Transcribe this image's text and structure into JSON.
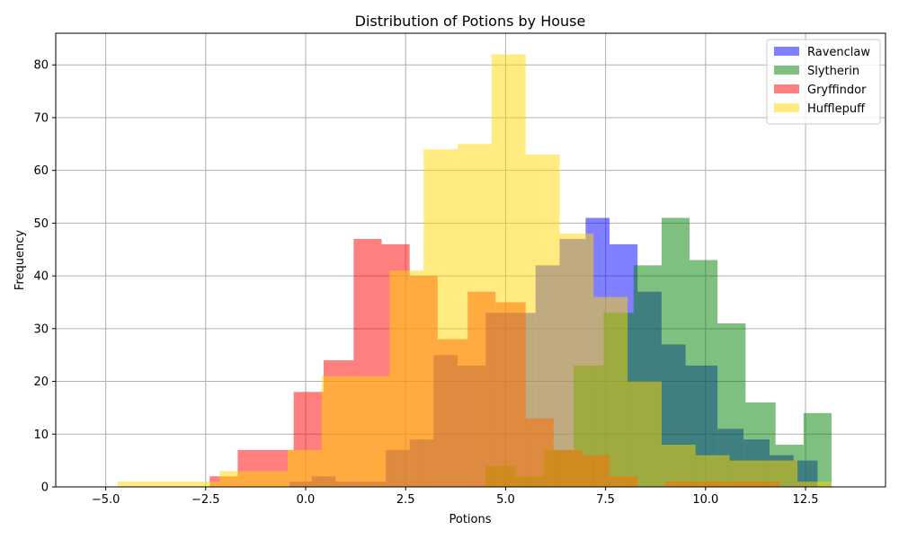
{
  "chart_data": {
    "type": "bar",
    "subtype": "overlapping-histogram",
    "title": "Distribution of Potions by House",
    "xlabel": "Potions",
    "ylabel": "Frequency",
    "xlim": [
      -6.25,
      14.5
    ],
    "ylim": [
      0,
      86
    ],
    "xticks": [
      -5.0,
      -2.5,
      0.0,
      2.5,
      5.0,
      7.5,
      10.0,
      12.5
    ],
    "xtick_labels": [
      "−5.0",
      "−2.5",
      "0.0",
      "2.5",
      "5.0",
      "7.5",
      "10.0",
      "12.5"
    ],
    "yticks": [
      0,
      10,
      20,
      30,
      40,
      50,
      60,
      70,
      80
    ],
    "ytick_labels": [
      "0",
      "10",
      "20",
      "30",
      "40",
      "50",
      "60",
      "70",
      "80"
    ],
    "grid": true,
    "legend_position": "top-right",
    "bar_opacity": 0.5,
    "series": [
      {
        "name": "Ravenclaw",
        "color": "#0000ff",
        "bins": [
          [
            -0.4,
            0.15,
            1
          ],
          [
            0.15,
            0.75,
            2
          ],
          [
            0.75,
            1.35,
            1
          ],
          [
            1.35,
            2.0,
            1
          ],
          [
            2.0,
            2.6,
            7
          ],
          [
            2.6,
            3.2,
            9
          ],
          [
            3.2,
            3.8,
            25
          ],
          [
            3.8,
            4.5,
            23
          ],
          [
            4.5,
            5.1,
            33
          ],
          [
            5.1,
            5.75,
            33
          ],
          [
            5.75,
            6.35,
            42
          ],
          [
            6.35,
            7.0,
            47
          ],
          [
            7.0,
            7.6,
            51
          ],
          [
            7.6,
            8.3,
            46
          ],
          [
            8.3,
            8.9,
            37
          ],
          [
            8.9,
            9.5,
            27
          ],
          [
            9.5,
            10.3,
            23
          ],
          [
            10.3,
            10.95,
            11
          ],
          [
            10.95,
            11.6,
            9
          ],
          [
            11.6,
            12.2,
            6
          ],
          [
            12.2,
            12.8,
            5
          ]
        ]
      },
      {
        "name": "Slytherin",
        "color": "#008000",
        "bins": [
          [
            4.5,
            5.25,
            4
          ],
          [
            5.25,
            5.95,
            2
          ],
          [
            5.95,
            6.7,
            7
          ],
          [
            6.7,
            7.45,
            23
          ],
          [
            7.45,
            8.2,
            33
          ],
          [
            8.2,
            8.9,
            42
          ],
          [
            8.9,
            9.6,
            51
          ],
          [
            9.6,
            10.3,
            43
          ],
          [
            10.3,
            11.0,
            31
          ],
          [
            11.0,
            11.75,
            16
          ],
          [
            11.75,
            12.45,
            8
          ],
          [
            12.45,
            13.15,
            14
          ]
        ]
      },
      {
        "name": "Gryffindor",
        "color": "#ff0000",
        "bins": [
          [
            -2.4,
            -1.7,
            2
          ],
          [
            -1.7,
            -1.0,
            7
          ],
          [
            -1.0,
            -0.3,
            7
          ],
          [
            -0.3,
            0.45,
            18
          ],
          [
            0.45,
            1.2,
            24
          ],
          [
            1.2,
            1.9,
            47
          ],
          [
            1.9,
            2.6,
            46
          ],
          [
            2.6,
            3.3,
            40
          ],
          [
            3.3,
            4.05,
            28
          ],
          [
            4.05,
            4.75,
            37
          ],
          [
            4.75,
            5.5,
            35
          ],
          [
            5.5,
            6.2,
            13
          ],
          [
            6.2,
            6.9,
            7
          ],
          [
            6.9,
            7.6,
            6
          ],
          [
            7.6,
            8.3,
            2
          ],
          [
            8.3,
            9.0,
            0
          ],
          [
            9.0,
            9.75,
            1
          ],
          [
            9.75,
            10.45,
            1
          ],
          [
            10.45,
            11.15,
            1
          ],
          [
            11.15,
            11.85,
            1
          ]
        ]
      },
      {
        "name": "Hufflepuff",
        "color": "#ffd700",
        "bins": [
          [
            -4.7,
            -3.85,
            1
          ],
          [
            -3.85,
            -3.0,
            1
          ],
          [
            -3.0,
            -2.15,
            1
          ],
          [
            -2.15,
            -1.3,
            3
          ],
          [
            -1.3,
            -0.45,
            3
          ],
          [
            -0.45,
            0.4,
            7
          ],
          [
            0.4,
            1.25,
            21
          ],
          [
            1.25,
            2.1,
            21
          ],
          [
            2.1,
            2.95,
            41
          ],
          [
            2.95,
            3.8,
            64
          ],
          [
            3.8,
            4.65,
            65
          ],
          [
            4.65,
            5.5,
            82
          ],
          [
            5.5,
            6.35,
            63
          ],
          [
            6.35,
            7.2,
            48
          ],
          [
            7.2,
            8.05,
            36
          ],
          [
            8.05,
            8.9,
            20
          ],
          [
            8.9,
            9.75,
            8
          ],
          [
            9.75,
            10.6,
            6
          ],
          [
            10.6,
            11.45,
            5
          ],
          [
            11.45,
            12.3,
            5
          ],
          [
            12.3,
            13.15,
            1
          ]
        ]
      }
    ]
  }
}
